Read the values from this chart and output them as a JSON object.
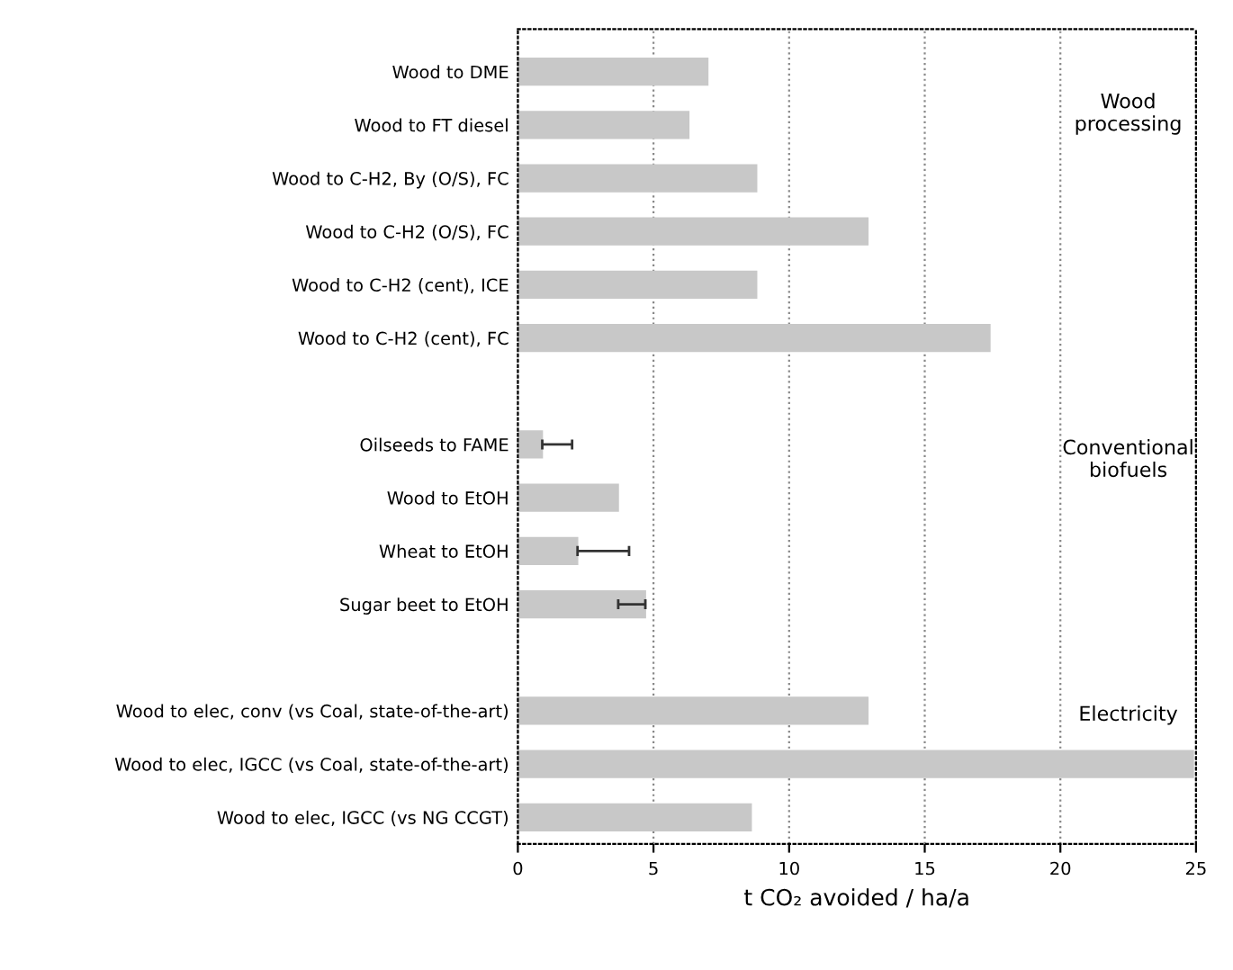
{
  "chart_data": {
    "type": "bar",
    "orientation": "horizontal",
    "categories": [
      "Wood to DME",
      "Wood to FT diesel",
      "Wood to C-H2, By (O/S), FC",
      "Wood to C-H2 (O/S), FC",
      "Wood to C-H2 (cent), ICE",
      "Wood to C-H2 (cent), FC",
      null,
      "Oilseeds to FAME",
      "Wood to EtOH",
      "Wheat to EtOH",
      "Sugar beet to EtOH",
      null,
      "Wood to elec, conv (vs Coal, state-of-the-art)",
      "Wood to elec, IGCC (vs Coal, state-of-the-art)",
      "Wood to elec, IGCC (vs NG CCGT)"
    ],
    "values": [
      7.0,
      6.3,
      8.8,
      12.9,
      8.8,
      17.4,
      null,
      0.9,
      3.7,
      2.2,
      4.7,
      null,
      12.9,
      24.9,
      8.6
    ],
    "errors": [
      null,
      null,
      null,
      null,
      null,
      null,
      null,
      [
        0.9,
        2.0
      ],
      null,
      [
        2.2,
        4.1
      ],
      [
        3.7,
        4.7
      ],
      null,
      null,
      null,
      null
    ],
    "color": "#c8c8c8",
    "xlabel": "t CO₂ avoided / ha/a",
    "xlim": [
      0,
      25
    ],
    "xticks": [
      0,
      5,
      10,
      15,
      20,
      25
    ],
    "grid": "x",
    "annotations": [
      "Wood\nprocessing",
      "Conventional\nbiofuels",
      "Electricity"
    ]
  }
}
